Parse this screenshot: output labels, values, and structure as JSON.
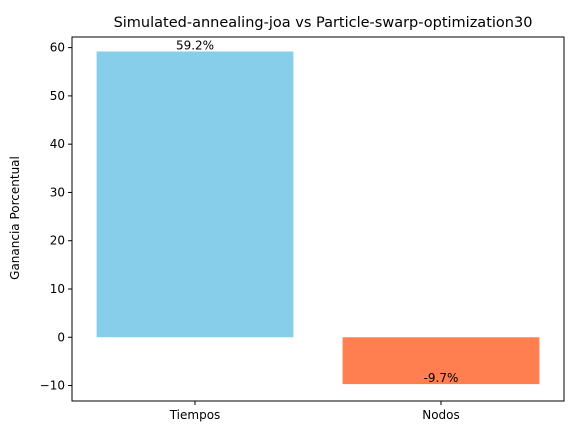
{
  "chart_data": {
    "type": "bar",
    "title": "Simulated-annealing-joa vs Particle-swarp-optimization30",
    "xlabel": "",
    "ylabel": "Ganancia Porcentual",
    "categories": [
      "Tiempos",
      "Nodos"
    ],
    "values": [
      59.2,
      -9.7
    ],
    "data_labels": [
      "59.2%",
      "-9.7%"
    ],
    "colors": [
      "#87CEEB",
      "#FF7F50"
    ],
    "ylim": [
      -13.2,
      62.2
    ],
    "yticks": [
      -10,
      0,
      10,
      20,
      30,
      40,
      50,
      60
    ],
    "grid": false,
    "legend": "none"
  }
}
